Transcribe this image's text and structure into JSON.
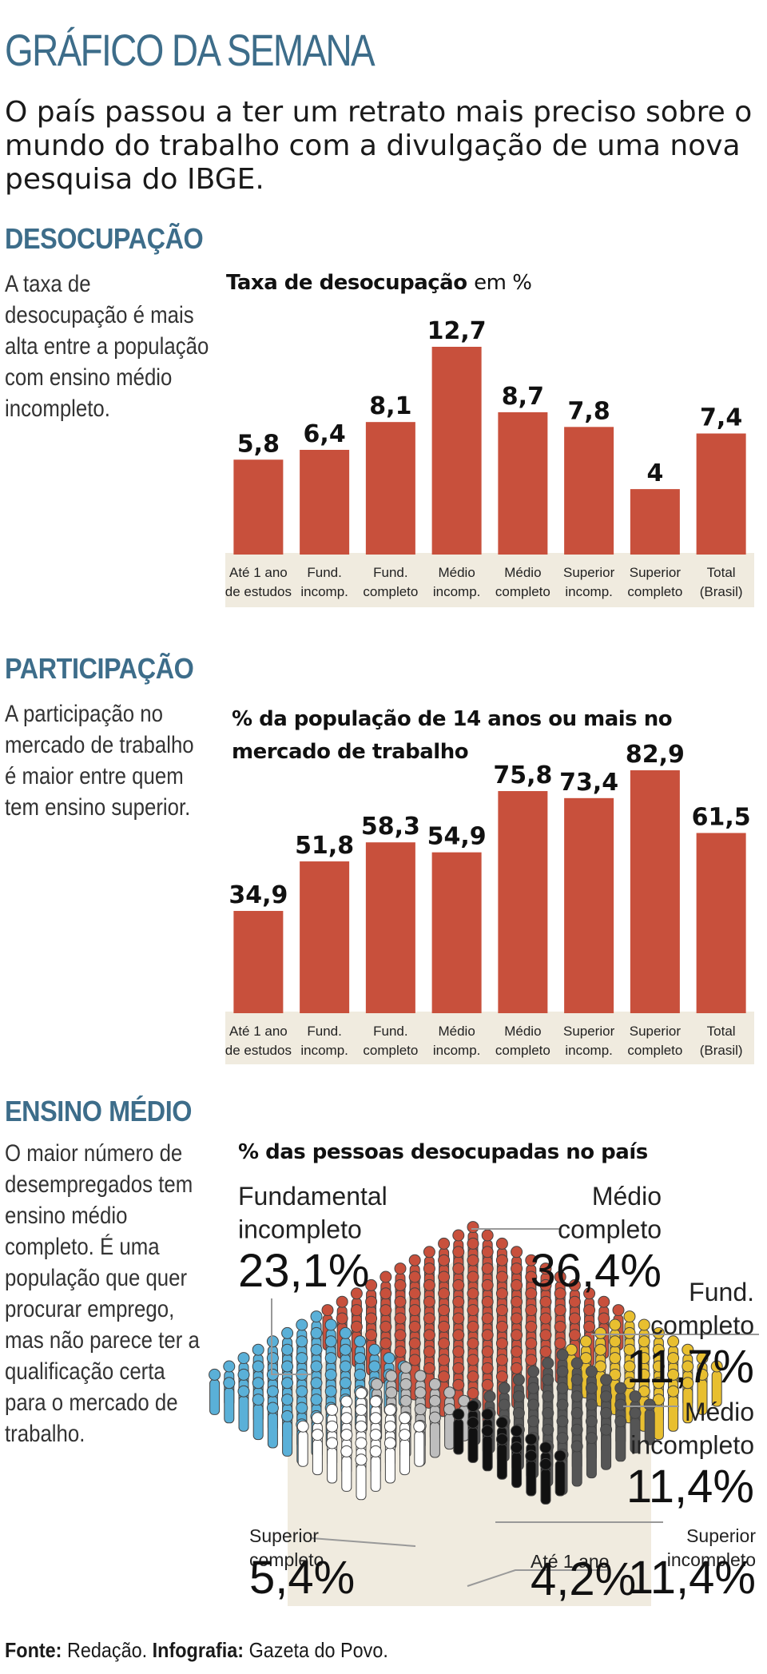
{
  "header": {
    "kicker": "GRÁFICO DA SEMANA",
    "lead": "O país passou a ter um retrato mais preciso sobre o mundo do trabalho com a divulgação de uma nova pesquisa do IBGE."
  },
  "sections": {
    "desocupacao": {
      "title": "DESOCUPAÇÃO",
      "text": "A taxa de desocupação é mais alta entre a população com ensino médio incompleto."
    },
    "participacao": {
      "title": "PARTICIPAÇÃO",
      "text": "A participação no mercado de trabalho é maior entre quem tem ensino superior."
    },
    "ensino_medio": {
      "title": "ENSINO MÉDIO",
      "text": "O maior número de desempregados tem ensino médio completo. É uma população que quer procurar emprego, mas não parece ter a qualificação certa para o mercado de trabalho."
    }
  },
  "source": {
    "label1": "Fonte:",
    "value1": " Redação.",
    "label2": " Infografia:",
    "value2": " Gazeta do Povo."
  },
  "colors": {
    "bar": "#c8503c",
    "band": "#f0ebdf",
    "header_blue": "#3d6d8a",
    "fund_incompleto": "#5ab0d8",
    "medio_completo": "#c8503c",
    "fund_completo": "#e8bf30",
    "medio_incompleto": "#555555",
    "ate_1_ano": "#111111",
    "superior_completo": "#bdbdbd",
    "superior_incompleto": "#ffffff"
  },
  "chart_data": [
    {
      "type": "bar",
      "title": "Taxa de desocupação",
      "title_unit": "em %",
      "categories": [
        [
          "Até 1 ano",
          "de estudos"
        ],
        [
          "Fund.",
          "incomp."
        ],
        [
          "Fund.",
          "completo"
        ],
        [
          "Médio",
          "incomp."
        ],
        [
          "Médio",
          "completo"
        ],
        [
          "Superior",
          "incomp."
        ],
        [
          "Superior",
          "completo"
        ],
        [
          "Total",
          "(Brasil)"
        ]
      ],
      "values": [
        5.8,
        6.4,
        8.1,
        12.7,
        8.7,
        7.8,
        4,
        7.4
      ],
      "value_labels": [
        "5,8",
        "6,4",
        "8,1",
        "12,7",
        "8,7",
        "7,8",
        "4",
        "7,4"
      ],
      "ylim": [
        0,
        12.7
      ]
    },
    {
      "type": "bar",
      "title": "% da população de 14 anos ou mais no mercado de trabalho",
      "categories": [
        [
          "Até 1 ano",
          "de estudos"
        ],
        [
          "Fund.",
          "incomp."
        ],
        [
          "Fund.",
          "completo"
        ],
        [
          "Médio",
          "incomp."
        ],
        [
          "Médio",
          "completo"
        ],
        [
          "Superior",
          "incomp."
        ],
        [
          "Superior",
          "completo"
        ],
        [
          "Total",
          "(Brasil)"
        ]
      ],
      "values": [
        34.9,
        51.8,
        58.3,
        54.9,
        75.8,
        73.4,
        82.9,
        61.5
      ],
      "value_labels": [
        "34,9",
        "51,8",
        "58,3",
        "54,9",
        "75,8",
        "73,4",
        "82,9",
        "61,5"
      ],
      "ylim": [
        0,
        82.9
      ]
    },
    {
      "type": "pie",
      "title": "% das pessoas desocupadas no país",
      "slices": [
        {
          "label": [
            "Fundamental",
            "incompleto"
          ],
          "value": 23.1,
          "value_label": "23,1%",
          "color": "#5ab0d8"
        },
        {
          "label": [
            "Médio",
            "completo"
          ],
          "value": 36.4,
          "value_label": "36,4%",
          "color": "#c8503c"
        },
        {
          "label": [
            "Fund.",
            "completo"
          ],
          "value": 11.7,
          "value_label": "11,7%",
          "color": "#e8bf30"
        },
        {
          "label": [
            "Médio",
            "incompleto"
          ],
          "value": 11.4,
          "value_label": "11,4%",
          "color": "#555555"
        },
        {
          "label": [
            "Superior",
            "incompleto"
          ],
          "value": 11.4,
          "value_label": "11,4%",
          "color": "#ffffff"
        },
        {
          "label": [
            "Até 1 ano"
          ],
          "value": 4.2,
          "value_label": "4,2%",
          "color": "#111111"
        },
        {
          "label": [
            "Superior",
            "completo"
          ],
          "value": 5.4,
          "value_label": "5,4%",
          "color": "#bdbdbd"
        }
      ]
    }
  ]
}
